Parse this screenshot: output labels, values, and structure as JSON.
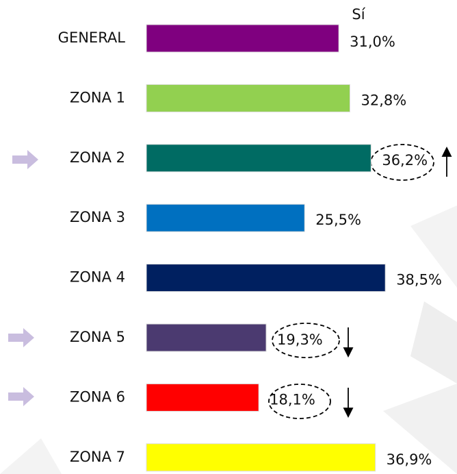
{
  "chart_data": {
    "type": "bar",
    "orientation": "horizontal",
    "categories": [
      "GENERAL",
      "ZONA 1",
      "ZONA 2",
      "ZONA 3",
      "ZONA 4",
      "ZONA 5",
      "ZONA 6",
      "ZONA 7"
    ],
    "series": [
      {
        "name": "Sí",
        "values": [
          31.0,
          32.8,
          36.2,
          25.5,
          38.5,
          19.3,
          18.1,
          36.9
        ],
        "value_labels": [
          "31,0%",
          "32,8%",
          "36,2%",
          "25,5%",
          "38,5%",
          "19,3%",
          "18,1%",
          "36,9%"
        ],
        "colors": [
          "#7f007f",
          "#92d050",
          "#006b63",
          "#0070c0",
          "#002060",
          "#4b3a70",
          "#ff0000",
          "#ffff00"
        ]
      }
    ]
  }
}
